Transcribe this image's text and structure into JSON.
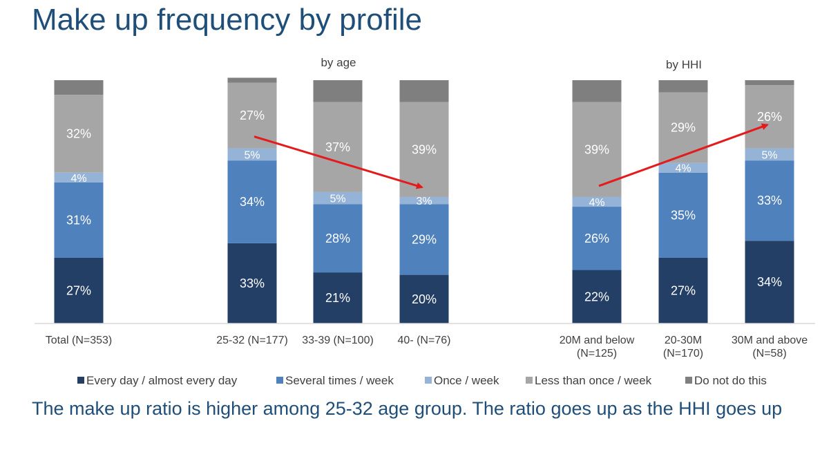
{
  "title": "Make up frequency by profile",
  "footer": "The make up ratio is higher among 25-32 age group. The ratio goes up as the HHI goes up",
  "chart_data": {
    "type": "bar",
    "stacked": true,
    "group_labels": [
      "by age",
      "by HHI"
    ],
    "categories": [
      "Total (N=353)",
      "25-32 (N=177)",
      "33-39 (N=100)",
      "40- (N=76)",
      "20M and below (N=125)",
      "20-30M (N=170)",
      "30M and above (N=58)"
    ],
    "category_lines": [
      [
        "Total (N=353)"
      ],
      [
        "25-32 (N=177)"
      ],
      [
        "33-39 (N=100)"
      ],
      [
        "40- (N=76)"
      ],
      [
        "20M and below",
        "(N=125)"
      ],
      [
        "20-30M",
        "(N=170)"
      ],
      [
        "30M and above",
        "(N=58)"
      ]
    ],
    "series": [
      {
        "name": "Every day / almost every day",
        "color": "#243f66",
        "values": [
          27,
          33,
          21,
          20,
          22,
          27,
          34
        ]
      },
      {
        "name": "Several times / week",
        "color": "#4f81bd",
        "values": [
          31,
          34,
          28,
          29,
          26,
          35,
          33
        ]
      },
      {
        "name": "Once / week",
        "color": "#95b3d7",
        "values": [
          4,
          5,
          5,
          3,
          4,
          4,
          5
        ]
      },
      {
        "name": "Less than once / week",
        "color": "#a6a6a6",
        "values": [
          32,
          27,
          37,
          39,
          39,
          29,
          26
        ]
      },
      {
        "name": "Do not do this",
        "color": "#7f7f7f",
        "values": [
          6,
          2,
          9,
          9,
          9,
          5,
          2
        ]
      }
    ],
    "data_labels_shown_for_series": [
      0,
      1,
      2,
      3
    ],
    "label_suffix": "%",
    "ylim": [
      0,
      100
    ],
    "annotations": [
      {
        "type": "arrow",
        "color": "#e41a1c",
        "from": "25-32 (N=177)",
        "to": "40- (N=76)"
      },
      {
        "type": "arrow",
        "color": "#e41a1c",
        "from": "20M and below (N=125)",
        "to": "30M and above (N=58)"
      }
    ],
    "legend_position": "bottom"
  }
}
